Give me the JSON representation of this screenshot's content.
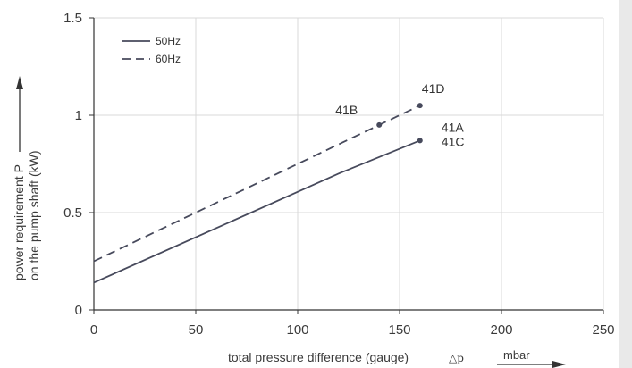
{
  "chart_data": {
    "type": "line",
    "title": "",
    "xlabel": "total pressure difference (gauge)",
    "xlabel_symbol": "△p",
    "xunit": "mbar",
    "ylabel_line1": "power requirement P",
    "ylabel_line2": "on the pump shaft (kW)",
    "xlim": [
      0,
      250
    ],
    "ylim": [
      0,
      1.5
    ],
    "xticks": [
      0,
      50,
      100,
      150,
      200,
      250
    ],
    "xtick_labels": [
      "0",
      "50",
      "100",
      "150",
      "200",
      "250"
    ],
    "yticks": [
      0,
      0.5,
      1,
      1.5
    ],
    "ytick_labels": [
      "0",
      "0.5",
      "1",
      "1.5"
    ],
    "grid": true,
    "legend_position": "top-left",
    "series": [
      {
        "name": "50Hz",
        "style": "solid",
        "x": [
          0,
          120,
          160
        ],
        "y": [
          0.14,
          0.7,
          0.87
        ]
      },
      {
        "name": "60Hz",
        "style": "dashed",
        "x": [
          0,
          160
        ],
        "y": [
          0.25,
          1.05
        ]
      }
    ],
    "points": [
      {
        "label": "41B",
        "x": 140,
        "y": 0.95
      },
      {
        "label": "41D",
        "x": 160,
        "y": 1.05
      },
      {
        "label": "41A",
        "x": 160,
        "y": 0.87
      },
      {
        "label": "41C",
        "x": 160,
        "y": 0.87
      }
    ]
  },
  "colors": {
    "line": "#474a5c",
    "grid": "#d8d8d8",
    "axis": "#333333",
    "strip": "#e9e9e9"
  }
}
